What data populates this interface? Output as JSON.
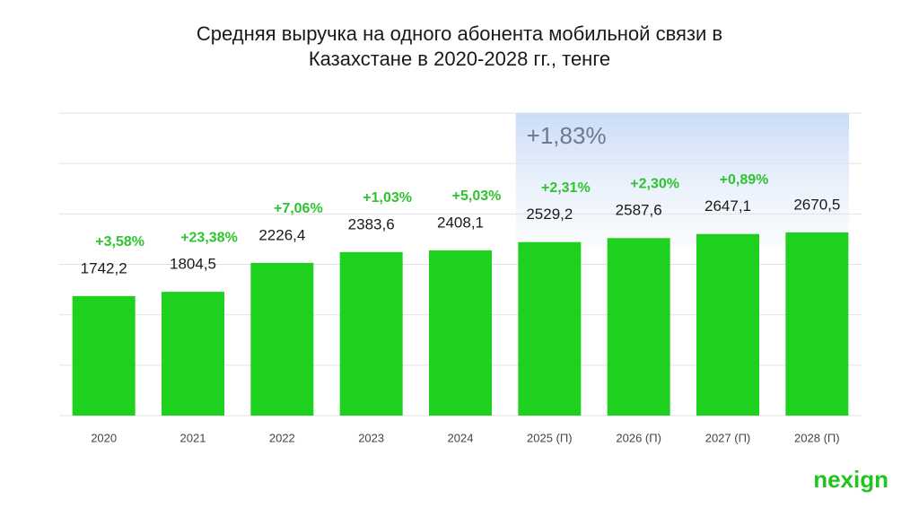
{
  "chart_data": {
    "type": "bar",
    "title": "Средняя выручка на одного абонента мобильной связи в Казахстане в 2020-2028 гг., тенге",
    "categories": [
      "2020",
      "2021",
      "2022",
      "2023",
      "2024",
      "2025 (П)",
      "2026 (П)",
      "2027 (П)",
      "2028 (П)"
    ],
    "values": [
      1742.2,
      1804.5,
      2226.4,
      2383.6,
      2408.1,
      2529.2,
      2587.6,
      2647.1,
      2670.5
    ],
    "value_labels": [
      "1742,2",
      "1804,5",
      "2226,4",
      "2383,6",
      "2408,1",
      "2529,2",
      "2587,6",
      "2647,1",
      "2670,5"
    ],
    "growth_labels": [
      "+3,58%",
      "+23,38%",
      "+7,06%",
      "+1,03%",
      "+5,03%",
      "+2,31%",
      "+2,30%",
      "+0,89%",
      null
    ],
    "highlight_label": "+1,83%",
    "color": "#1fd11f",
    "ylim": [
      0,
      4410
    ],
    "yticks": [
      0,
      735,
      1470,
      2205,
      2940,
      3675,
      4410
    ],
    "grid": true,
    "logo": "nexign"
  }
}
